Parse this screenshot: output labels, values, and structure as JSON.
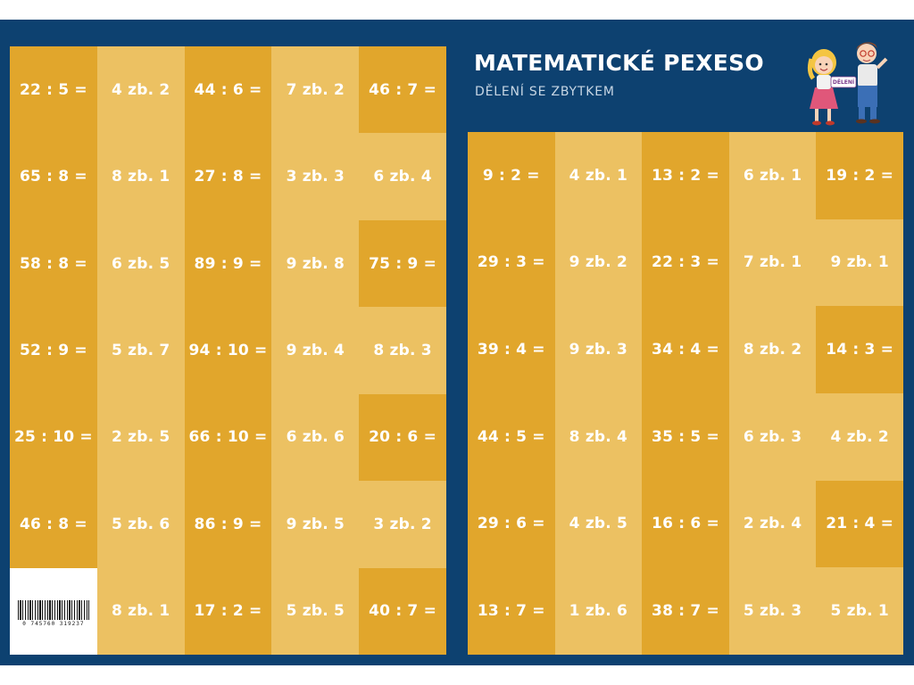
{
  "header": {
    "title": "MATEMATICKÉ PEXESO",
    "subtitle": "DĚLENÍ SE ZBYTKEM",
    "illustration_sign": "DĚLENÍ"
  },
  "barcode": {
    "number": "0  745760  319237"
  },
  "left_grid": [
    [
      {
        "t": "22 : 5 =",
        "s": "dark"
      },
      {
        "t": "4 zb. 2",
        "s": "light"
      },
      {
        "t": "44 : 6 =",
        "s": "dark"
      },
      {
        "t": "7 zb. 2",
        "s": "light"
      },
      {
        "t": "46 : 7 =",
        "s": "dark"
      }
    ],
    [
      {
        "t": "65 : 8 =",
        "s": "dark"
      },
      {
        "t": "8 zb. 1",
        "s": "light"
      },
      {
        "t": "27 : 8 =",
        "s": "dark"
      },
      {
        "t": "3 zb. 3",
        "s": "light"
      },
      {
        "t": "6 zb. 4",
        "s": "light"
      }
    ],
    [
      {
        "t": "58 : 8 =",
        "s": "dark"
      },
      {
        "t": "6 zb. 5",
        "s": "light"
      },
      {
        "t": "89 : 9 =",
        "s": "dark"
      },
      {
        "t": "9 zb. 8",
        "s": "light"
      },
      {
        "t": "75 : 9 =",
        "s": "dark"
      }
    ],
    [
      {
        "t": "52 : 9 =",
        "s": "dark"
      },
      {
        "t": "5 zb. 7",
        "s": "light"
      },
      {
        "t": "94 : 10 =",
        "s": "dark"
      },
      {
        "t": "9 zb. 4",
        "s": "light"
      },
      {
        "t": "8 zb. 3",
        "s": "light"
      }
    ],
    [
      {
        "t": "25 : 10 =",
        "s": "dark"
      },
      {
        "t": "2 zb. 5",
        "s": "light"
      },
      {
        "t": "66 : 10 =",
        "s": "dark"
      },
      {
        "t": "6 zb. 6",
        "s": "light"
      },
      {
        "t": "20 : 6 =",
        "s": "dark"
      }
    ],
    [
      {
        "t": "46 : 8 =",
        "s": "dark"
      },
      {
        "t": "5 zb. 6",
        "s": "light"
      },
      {
        "t": "86 : 9 =",
        "s": "dark"
      },
      {
        "t": "9 zb. 5",
        "s": "light"
      },
      {
        "t": "3 zb. 2",
        "s": "light"
      }
    ],
    [
      {
        "t": "",
        "s": "barcode"
      },
      {
        "t": "8 zb. 1",
        "s": "light"
      },
      {
        "t": "17 : 2 =",
        "s": "dark"
      },
      {
        "t": "5 zb. 5",
        "s": "light"
      },
      {
        "t": "40 : 7 =",
        "s": "dark"
      }
    ]
  ],
  "right_grid": [
    [
      {
        "t": "9 : 2 =",
        "s": "dark"
      },
      {
        "t": "4 zb. 1",
        "s": "light"
      },
      {
        "t": "13 : 2 =",
        "s": "dark"
      },
      {
        "t": "6 zb. 1",
        "s": "light"
      },
      {
        "t": "19 : 2 =",
        "s": "dark"
      }
    ],
    [
      {
        "t": "29 : 3 =",
        "s": "dark"
      },
      {
        "t": "9 zb. 2",
        "s": "light"
      },
      {
        "t": "22 : 3 =",
        "s": "dark"
      },
      {
        "t": "7 zb. 1",
        "s": "light"
      },
      {
        "t": "9 zb. 1",
        "s": "light"
      }
    ],
    [
      {
        "t": "39 : 4 =",
        "s": "dark"
      },
      {
        "t": "9 zb. 3",
        "s": "light"
      },
      {
        "t": "34 : 4 =",
        "s": "dark"
      },
      {
        "t": "8 zb. 2",
        "s": "light"
      },
      {
        "t": "14 : 3 =",
        "s": "dark"
      }
    ],
    [
      {
        "t": "44 : 5 =",
        "s": "dark"
      },
      {
        "t": "8 zb. 4",
        "s": "light"
      },
      {
        "t": "35 : 5 =",
        "s": "dark"
      },
      {
        "t": "6 zb. 3",
        "s": "light"
      },
      {
        "t": "4 zb. 2",
        "s": "light"
      }
    ],
    [
      {
        "t": "29 : 6 =",
        "s": "dark"
      },
      {
        "t": "4 zb. 5",
        "s": "light"
      },
      {
        "t": "16 : 6 =",
        "s": "dark"
      },
      {
        "t": "2 zb. 4",
        "s": "light"
      },
      {
        "t": "21 : 4 =",
        "s": "dark"
      }
    ],
    [
      {
        "t": "13 : 7 =",
        "s": "dark"
      },
      {
        "t": "1 zb. 6",
        "s": "light"
      },
      {
        "t": "38 : 7 =",
        "s": "dark"
      },
      {
        "t": "5 zb. 3",
        "s": "light"
      },
      {
        "t": "5 zb. 1",
        "s": "light"
      }
    ]
  ],
  "colors": {
    "background": "#0d4170",
    "card_dark": "#e1a62c",
    "card_light": "#ecc162",
    "text": "#ffffff"
  }
}
